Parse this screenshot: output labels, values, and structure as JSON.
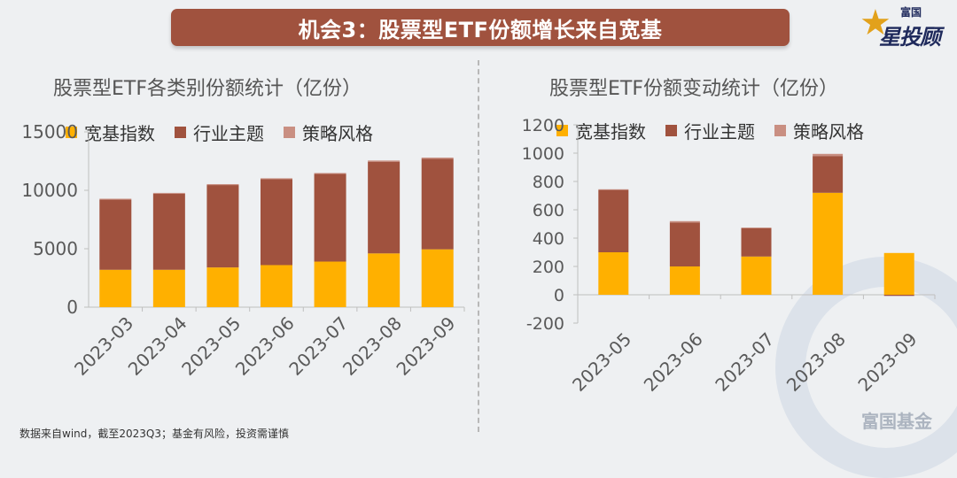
{
  "banner": {
    "title": "机会3：股票型ETF份额增长来自宽基"
  },
  "logo": {
    "small": "富国",
    "text": "星投顾"
  },
  "watermark": {
    "text": "富国基金"
  },
  "footnote": "数据来自wind，截至2023Q3；基金有风险，投资需谨慎",
  "colors": {
    "broad": "#ffb000",
    "industry": "#a0523e",
    "strategy": "#c98f82",
    "axis": "#bfbfbf",
    "text": "#595959"
  },
  "chart_data": [
    {
      "type": "bar",
      "stacked": true,
      "title": "股票型ETF各类别份额统计（亿份）",
      "categories": [
        "2023-03",
        "2023-04",
        "2023-05",
        "2023-06",
        "2023-07",
        "2023-08",
        "2023-09"
      ],
      "series": [
        {
          "name": "宽基指数",
          "color": "#ffb000",
          "values": [
            3200,
            3200,
            3400,
            3600,
            3900,
            4600,
            4950
          ]
        },
        {
          "name": "行业主题",
          "color": "#a0523e",
          "values": [
            6000,
            6500,
            7050,
            7350,
            7500,
            7850,
            7750
          ]
        },
        {
          "name": "策略风格",
          "color": "#c98f82",
          "values": [
            80,
            80,
            80,
            80,
            80,
            100,
            100
          ]
        }
      ],
      "ylim": [
        0,
        15000
      ],
      "yticks": [
        "0",
        "5000",
        "10000",
        "15000"
      ]
    },
    {
      "type": "bar",
      "stacked": true,
      "title": "股票型ETF份额变动统计（亿份）",
      "categories": [
        "2023-05",
        "2023-06",
        "2023-07",
        "2023-08",
        "2023-09"
      ],
      "series": [
        {
          "name": "宽基指数",
          "color": "#ffb000",
          "values": [
            300,
            200,
            270,
            720,
            295
          ]
        },
        {
          "name": "行业主题",
          "color": "#a0523e",
          "values": [
            440,
            310,
            200,
            260,
            -8
          ]
        },
        {
          "name": "策略风格",
          "color": "#c98f82",
          "values": [
            5,
            10,
            5,
            15,
            0
          ]
        }
      ],
      "ylim": [
        -200,
        1200
      ],
      "yticks": [
        "-200",
        "0",
        "200",
        "400",
        "600",
        "800",
        "1000",
        "1200"
      ]
    }
  ]
}
